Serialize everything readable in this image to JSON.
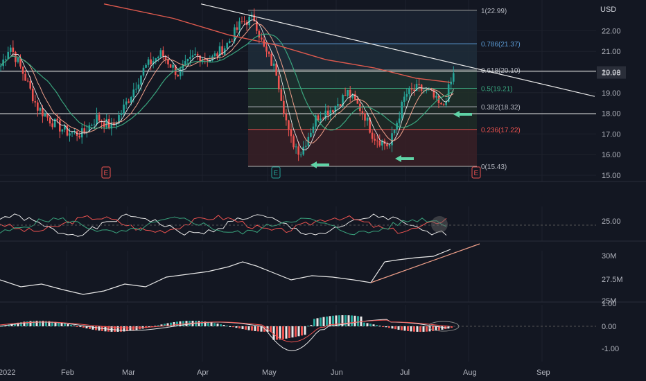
{
  "chart_data": {
    "type": "candlestick",
    "symbol": "",
    "currency": "USD",
    "last_price": "19.98",
    "x_ticks": [
      "2022",
      "Feb",
      "Mar",
      "Apr",
      "May",
      "Jun",
      "Jul",
      "Aug",
      "Sep"
    ],
    "price_axis": {
      "ticks": [
        "22.00",
        "21.00",
        "20.00",
        "19.00",
        "18.00",
        "17.00",
        "16.00",
        "15.00"
      ],
      "ylim": [
        15.0,
        23.3
      ]
    },
    "fibonacci": [
      {
        "label": "1(22.99)",
        "price": 22.99
      },
      {
        "label": "0.786(21.37)",
        "price": 21.37
      },
      {
        "label": "0.618(20.10)",
        "price": 20.1
      },
      {
        "label": "0.5(19.21)",
        "price": 19.21
      },
      {
        "label": "0.382(18.32)",
        "price": 18.32
      },
      {
        "label": "0.236(17.22)",
        "price": 17.22
      },
      {
        "label": "0(15.43)",
        "price": 15.43
      }
    ],
    "earnings_markers": [
      {
        "label": "E",
        "date": "Jan 26"
      },
      {
        "label": "E",
        "date": "May 5"
      },
      {
        "label": "E",
        "date": "Aug 1"
      }
    ],
    "close_path": [
      {
        "date": "Dec 30",
        "close": 20.3
      },
      {
        "date": "Jan 5",
        "close": 21.3
      },
      {
        "date": "Jan 12",
        "close": 19.8
      },
      {
        "date": "Jan 18",
        "close": 18.3
      },
      {
        "date": "Jan 25",
        "close": 17.6
      },
      {
        "date": "Feb 1",
        "close": 17.1
      },
      {
        "date": "Feb 8",
        "close": 17.0
      },
      {
        "date": "Feb 15",
        "close": 17.8
      },
      {
        "date": "Feb 22",
        "close": 17.3
      },
      {
        "date": "Mar 1",
        "close": 18.6
      },
      {
        "date": "Mar 8",
        "close": 20.2
      },
      {
        "date": "Mar 15",
        "close": 20.9
      },
      {
        "date": "Mar 22",
        "close": 19.9
      },
      {
        "date": "Mar 29",
        "close": 20.8
      },
      {
        "date": "Apr 5",
        "close": 20.6
      },
      {
        "date": "Apr 12",
        "close": 21.3
      },
      {
        "date": "Apr 19",
        "close": 22.4
      },
      {
        "date": "Apr 25",
        "close": 22.6
      },
      {
        "date": "Apr 29",
        "close": 21.2
      },
      {
        "date": "May 5",
        "close": 20.0
      },
      {
        "date": "May 11",
        "close": 16.8
      },
      {
        "date": "May 16",
        "close": 16.1
      },
      {
        "date": "May 23",
        "close": 17.8
      },
      {
        "date": "May 31",
        "close": 18.3
      },
      {
        "date": "Jun 6",
        "close": 19.0
      },
      {
        "date": "Jun 13",
        "close": 18.0
      },
      {
        "date": "Jun 17",
        "close": 16.9
      },
      {
        "date": "Jun 24",
        "close": 16.4
      },
      {
        "date": "Jul 1",
        "close": 18.9
      },
      {
        "date": "Jul 7",
        "close": 19.2
      },
      {
        "date": "Jul 13",
        "close": 19.0
      },
      {
        "date": "Jul 19",
        "close": 18.2
      },
      {
        "date": "Jul 25",
        "close": 19.98
      }
    ],
    "panes": [
      {
        "name": "price",
        "ticks": [
          "22.00",
          "21.00",
          "20.00",
          "19.00",
          "18.00",
          "17.00",
          "16.00",
          "15.00"
        ]
      },
      {
        "name": "oscillator",
        "ticks": [
          "25.00"
        ]
      },
      {
        "name": "volume_line",
        "ticks": [
          "30M",
          "27.5M",
          "25M"
        ]
      },
      {
        "name": "macd",
        "ticks": [
          "1.00",
          "0.00",
          "-1.00"
        ]
      }
    ]
  },
  "colors": {
    "background": "#131722",
    "up": "#26a69a",
    "down": "#ef5350",
    "grid": "#1e222d",
    "text": "#b2b5be",
    "trendline": "#e9e9e9",
    "ma_red": "#e05a4e",
    "ma_green": "#3aa57e",
    "fib_blue": "#5b9bd5",
    "arrow": "#5fd3a6"
  }
}
